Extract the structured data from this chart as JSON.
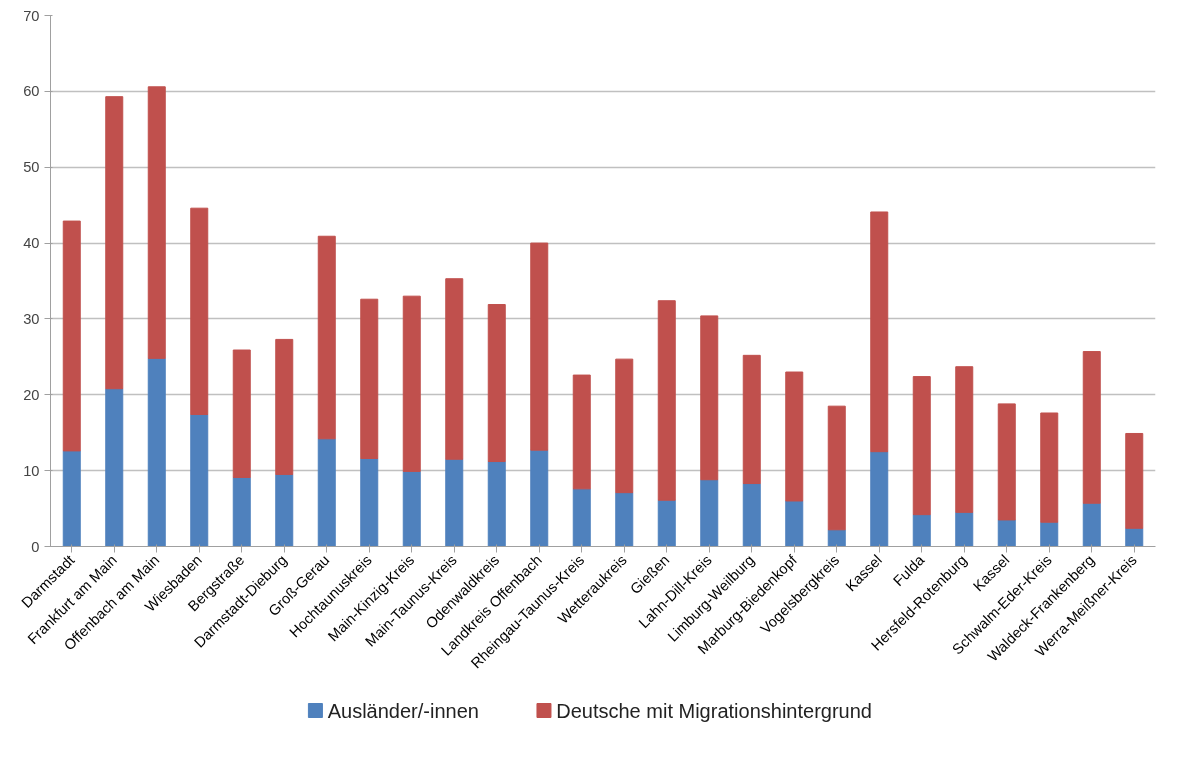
{
  "chart_data": {
    "type": "bar",
    "stacked": true,
    "categories": [
      "Darmstadt",
      "Frankfurt am Main",
      "Offenbach am Main",
      "Wiesbaden",
      "Bergstraße",
      "Darmstadt-Dieburg",
      "Groß-Gerau",
      "Hochtaunuskreis",
      "Main-Kinzig-Kreis",
      "Main-Taunus-Kreis",
      "Odenwaldkreis",
      "Landkreis Offenbach",
      "Rheingau-Taunus-Kreis",
      "Wetteraukreis",
      "Gießen",
      "Lahn-Dill-Kreis",
      "Limburg-Weilburg",
      "Marburg-Biedenkopf",
      "Vogelsbergkreis",
      "Kassel",
      "Fulda",
      "Hersfeld-Rotenburg",
      "Kassel",
      "Schwalm-Eder-Kreis",
      "Waldeck-Frankenberg",
      "Werra-Meißner-Kreis"
    ],
    "series": [
      {
        "name": "Ausländer/-innen",
        "color": "#4f81bd",
        "values": [
          12.6,
          20.8,
          24.8,
          17.4,
          9.1,
          9.5,
          14.2,
          11.6,
          9.9,
          11.5,
          11.2,
          12.7,
          7.6,
          7.1,
          6.1,
          8.8,
          8.3,
          6.0,
          2.2,
          12.5,
          4.2,
          4.5,
          3.5,
          3.2,
          5.7,
          2.4
        ]
      },
      {
        "name": "Deutsche mit Migrationshintergrund",
        "color": "#c0504d",
        "values": [
          30.3,
          38.5,
          35.8,
          27.2,
          16.8,
          17.8,
          26.7,
          21.0,
          23.1,
          23.8,
          20.7,
          27.3,
          15.0,
          17.6,
          26.3,
          21.6,
          16.9,
          17.0,
          16.3,
          31.6,
          18.2,
          19.2,
          15.3,
          14.4,
          20.0,
          12.5
        ]
      }
    ],
    "ylim": [
      0,
      70
    ],
    "yticks": [
      0,
      10,
      20,
      30,
      40,
      50,
      60,
      70
    ],
    "grid": "y",
    "legend": "bottom"
  }
}
